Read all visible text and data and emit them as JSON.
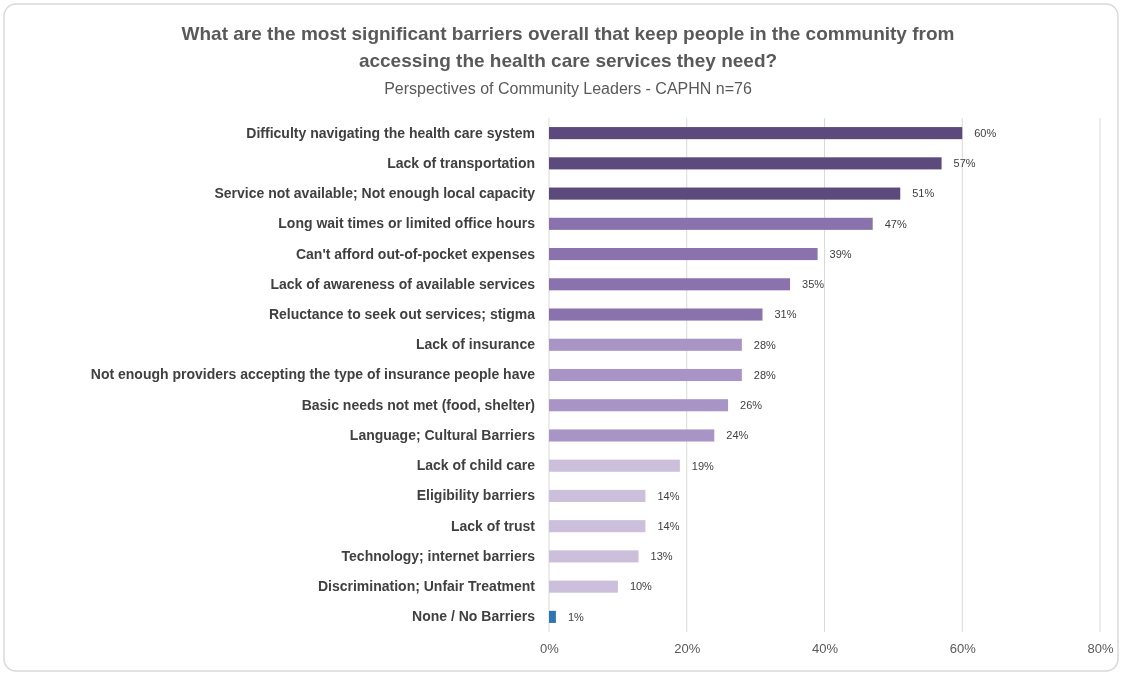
{
  "chart_data": {
    "type": "bar",
    "orientation": "horizontal",
    "title": "What are the most significant barriers overall that keep people in the community from accessing the health care services they need?",
    "subtitle": "Perspectives of Community Leaders - CAPHN n=76",
    "categories": [
      "Difficulty navigating the health care system",
      "Lack of transportation",
      "Service not available; Not enough local capacity",
      "Long wait times or limited office hours",
      "Can't afford out-of-pocket expenses",
      "Lack of awareness of available services",
      "Reluctance to seek out services; stigma",
      "Lack of insurance",
      "Not enough providers accepting the type of insurance people have",
      "Basic needs not met (food, shelter)",
      "Language; Cultural Barriers",
      "Lack of child care",
      "Eligibility barriers",
      "Lack of trust",
      "Technology; internet barriers",
      "Discrimination; Unfair Treatment",
      "None / No Barriers"
    ],
    "values": [
      60,
      57,
      51,
      47,
      39,
      35,
      31,
      28,
      28,
      26,
      24,
      19,
      14,
      14,
      13,
      10,
      1
    ],
    "value_labels": [
      "60%",
      "57%",
      "51%",
      "47%",
      "39%",
      "35%",
      "31%",
      "28%",
      "28%",
      "26%",
      "24%",
      "19%",
      "14%",
      "14%",
      "13%",
      "10%",
      "1%"
    ],
    "colors": [
      "#5b4a7b",
      "#5b4a7b",
      "#5b4a7b",
      "#8a73ad",
      "#8a73ad",
      "#8a73ad",
      "#8a73ad",
      "#a994c6",
      "#a994c6",
      "#a994c6",
      "#a994c6",
      "#cbbfdc",
      "#cbbfdc",
      "#cbbfdc",
      "#cbbfdc",
      "#cbbfdc",
      "#2e75b6"
    ],
    "xlim": [
      0,
      80
    ],
    "xticks": [
      {
        "value": 0,
        "label": "0%"
      },
      {
        "value": 20,
        "label": "20%"
      },
      {
        "value": 40,
        "label": "40%"
      },
      {
        "value": 60,
        "label": "60%"
      },
      {
        "value": 80,
        "label": "80%"
      }
    ],
    "grid": "x"
  }
}
